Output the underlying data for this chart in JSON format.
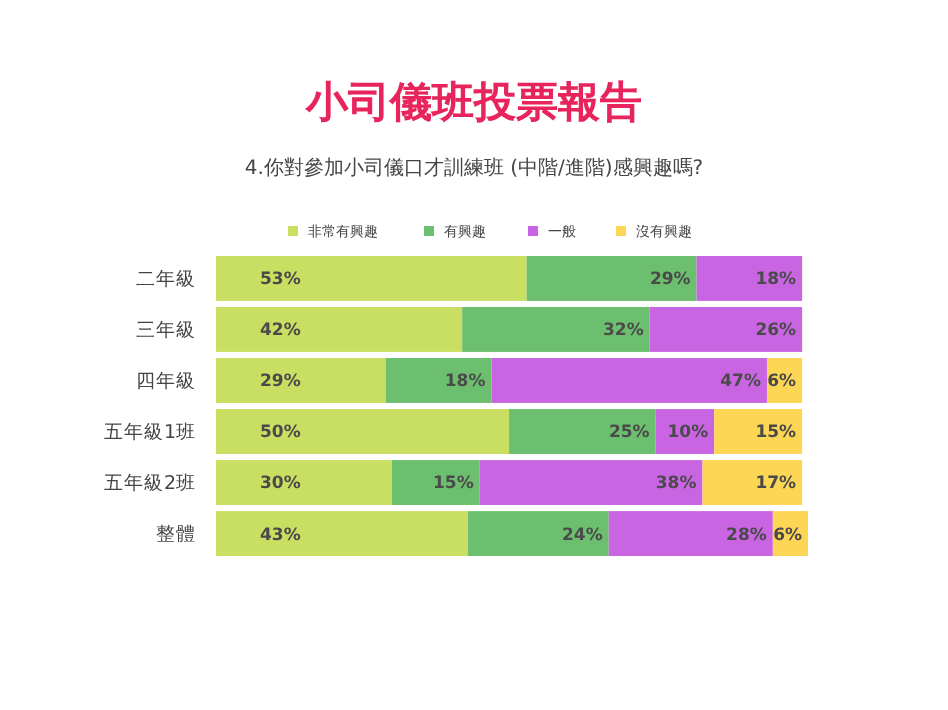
{
  "chart_data": {
    "type": "bar",
    "orientation": "horizontal",
    "stacked": true,
    "title": "小司儀班投票報告",
    "subtitle": "4.你對參加小司儀口才訓練班 (中階/進階)感興趣嗎?",
    "categories": [
      "二年級",
      "三年級",
      "四年級",
      "五年級1班",
      "五年級2班",
      "整體"
    ],
    "series": [
      {
        "name": "非常有興趣",
        "color": "#c8df62",
        "values": [
          53,
          42,
          29,
          50,
          30,
          43
        ],
        "value_labels": [
          "53%",
          "42%",
          "29%",
          "50%",
          "30%",
          "43%"
        ]
      },
      {
        "name": "有興趣",
        "color": "#6cbf6e",
        "values": [
          29,
          32,
          18,
          25,
          15,
          24
        ],
        "value_labels": [
          "29%",
          "32%",
          "18%",
          "25%",
          "15%",
          "24%"
        ]
      },
      {
        "name": "一般",
        "color": "#c965e3",
        "values": [
          18,
          26,
          47,
          10,
          38,
          28
        ],
        "value_labels": [
          "18%",
          "26%",
          "47%",
          "10%",
          "38%",
          "28%"
        ]
      },
      {
        "name": "沒有興趣",
        "color": "#fdd655",
        "values": [
          null,
          null,
          6,
          15,
          17,
          6
        ],
        "value_labels": [
          null,
          null,
          "6%",
          "15%",
          "17%",
          "6%"
        ]
      }
    ],
    "xlim": [
      0,
      101
    ],
    "legend": "top",
    "tick_labels": "y"
  }
}
